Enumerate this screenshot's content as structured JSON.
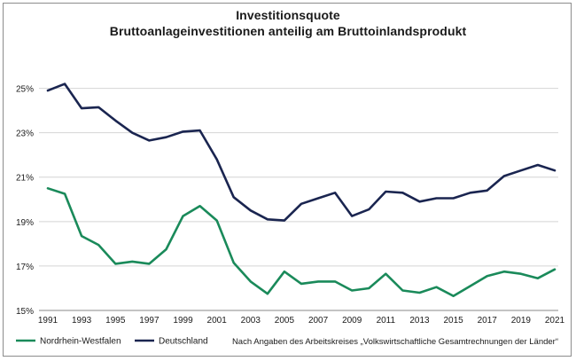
{
  "chart_data": {
    "type": "line",
    "title": "Investitionsquote",
    "subtitle": "Bruttoanlageinvestitionen anteilig am Bruttoinlandsprodukt",
    "x": [
      1991,
      1992,
      1993,
      1994,
      1995,
      1996,
      1997,
      1998,
      1999,
      2000,
      2001,
      2002,
      2003,
      2004,
      2005,
      2006,
      2007,
      2008,
      2009,
      2010,
      2011,
      2012,
      2013,
      2014,
      2015,
      2016,
      2017,
      2018,
      2019,
      2020,
      2021
    ],
    "x_tick_labels": [
      "1991",
      "1993",
      "1995",
      "1997",
      "1999",
      "2001",
      "2003",
      "2005",
      "2007",
      "2009",
      "2011",
      "2013",
      "2015",
      "2017",
      "2019",
      "2021"
    ],
    "y_tick_labels": [
      "15%",
      "17%",
      "19%",
      "21%",
      "23%",
      "25%"
    ],
    "ylim": [
      15,
      26.5
    ],
    "y_ticks": [
      15,
      17,
      19,
      21,
      23,
      25
    ],
    "grid": true,
    "legend_position": "bottom-left",
    "series": [
      {
        "name": "Nordrhein-Westfalen",
        "color": "#1a8a5a",
        "values": [
          20.5,
          20.25,
          18.35,
          17.95,
          17.1,
          17.2,
          17.1,
          17.75,
          19.25,
          19.7,
          19.05,
          17.15,
          16.3,
          15.75,
          16.75,
          16.2,
          16.3,
          16.3,
          15.9,
          16.0,
          16.65,
          15.9,
          15.8,
          16.05,
          15.65,
          16.1,
          16.55,
          16.75,
          16.65,
          16.45,
          16.85
        ]
      },
      {
        "name": "Deutschland",
        "color": "#1a2550",
        "values": [
          24.9,
          25.2,
          24.1,
          24.15,
          23.55,
          23.0,
          22.65,
          22.8,
          23.05,
          23.1,
          21.8,
          20.1,
          19.5,
          19.1,
          19.05,
          19.8,
          20.05,
          20.3,
          19.25,
          19.55,
          20.35,
          20.3,
          19.9,
          20.05,
          20.05,
          20.3,
          20.4,
          21.05,
          21.3,
          21.55,
          21.3
        ]
      }
    ],
    "source_note": "Nach Angaben des Arbeitskreises „Volkswirtschaftliche Gesamtrechnungen der Länder“"
  }
}
